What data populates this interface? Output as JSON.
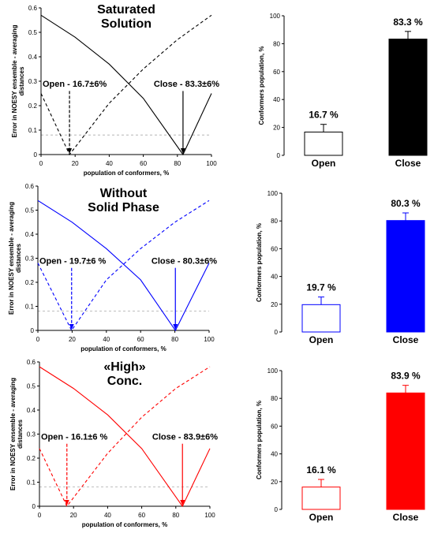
{
  "chart_data": [
    {
      "type": "line",
      "title": [
        "Saturated",
        "Solution"
      ],
      "xlabel": "population of conformers, %",
      "ylabel": [
        "Error in NOESY ensemble - averaging",
        "distances"
      ],
      "xlim": [
        0,
        100
      ],
      "ylim": [
        0,
        0.6
      ],
      "xticks": [
        "0",
        "20",
        "40",
        "60",
        "80",
        "100"
      ],
      "yticks": [
        "0",
        "0.1",
        "0.2",
        "0.3",
        "0.4",
        "0.5",
        "0.6"
      ],
      "color": "#000000",
      "threshold": 0.08,
      "series": [
        {
          "style": "solid",
          "x": [
            0,
            20,
            40,
            60,
            83.3,
            100
          ],
          "y": [
            0.57,
            0.48,
            0.37,
            0.23,
            0.0,
            0.25
          ]
        },
        {
          "style": "dashed",
          "x": [
            0,
            16.7,
            40,
            60,
            80,
            100
          ],
          "y": [
            0.25,
            0.0,
            0.21,
            0.35,
            0.47,
            0.57
          ]
        }
      ],
      "annotations": [
        {
          "text": "Open - 16.7±6%",
          "x": 16.7,
          "style": "dashed"
        },
        {
          "text": "Close - 83.3±6%",
          "x": 83.3,
          "style": "solid"
        }
      ]
    },
    {
      "type": "bar",
      "ylabel": "Conformers population, %",
      "ylim": [
        0,
        100
      ],
      "yticks": [
        "0",
        "20",
        "40",
        "60",
        "80",
        "100"
      ],
      "categories": [
        "Open",
        "Close"
      ],
      "values": [
        16.7,
        83.3
      ],
      "errors": [
        5.5,
        5.5
      ],
      "labels": [
        "16.7 %",
        "83.3 %"
      ],
      "fill": [
        "#ffffff",
        "#000000"
      ],
      "stroke": "#000000"
    },
    {
      "type": "line",
      "title": [
        "Without",
        "Solid Phase"
      ],
      "xlabel": "population of conformers, %",
      "ylabel": [
        "Error in NOESY ensemble - averaging",
        "distances"
      ],
      "xlim": [
        0,
        100
      ],
      "ylim": [
        0,
        0.6
      ],
      "xticks": [
        "0",
        "20",
        "40",
        "60",
        "80",
        "100"
      ],
      "yticks": [
        "0",
        "0.1",
        "0.2",
        "0.3",
        "0.4",
        "0.5",
        "0.6"
      ],
      "color": "#0000ff",
      "threshold": 0.08,
      "series": [
        {
          "style": "solid",
          "x": [
            0,
            20,
            40,
            60,
            80.3,
            100
          ],
          "y": [
            0.54,
            0.45,
            0.34,
            0.21,
            0.0,
            0.28
          ]
        },
        {
          "style": "dashed",
          "x": [
            0,
            19.7,
            40,
            60,
            80,
            100
          ],
          "y": [
            0.28,
            0.0,
            0.21,
            0.34,
            0.45,
            0.54
          ]
        }
      ],
      "annotations": [
        {
          "text": "Open - 19.7±6 %",
          "x": 19.7,
          "style": "dashed"
        },
        {
          "text": "Close - 80.3±6%",
          "x": 80.3,
          "style": "solid"
        }
      ]
    },
    {
      "type": "bar",
      "ylabel": "Conformers population, %",
      "ylim": [
        0,
        100
      ],
      "yticks": [
        "0",
        "20",
        "40",
        "60",
        "80",
        "100"
      ],
      "categories": [
        "Open",
        "Close"
      ],
      "values": [
        19.7,
        80.3
      ],
      "errors": [
        5.5,
        5.5
      ],
      "labels": [
        "19.7 %",
        "80.3 %"
      ],
      "fill": [
        "#ffffff",
        "#0000ff"
      ],
      "stroke": "#0000ff"
    },
    {
      "type": "line",
      "title": [
        "«High»",
        "Conc."
      ],
      "xlabel": "population of conformers, %",
      "ylabel": [
        "Error in NOESY ensemble - averaging",
        "distances"
      ],
      "xlim": [
        0,
        100
      ],
      "ylim": [
        0,
        0.6
      ],
      "xticks": [
        "0",
        "20",
        "40",
        "60",
        "80",
        "100"
      ],
      "yticks": [
        "0",
        "0.1",
        "0.2",
        "0.3",
        "0.4",
        "0.5",
        "0.6"
      ],
      "color": "#ff0000",
      "threshold": 0.08,
      "series": [
        {
          "style": "solid",
          "x": [
            0,
            20,
            40,
            60,
            83.9,
            100
          ],
          "y": [
            0.58,
            0.49,
            0.38,
            0.24,
            0.0,
            0.24
          ]
        },
        {
          "style": "dashed",
          "x": [
            0,
            16.1,
            40,
            60,
            80,
            100
          ],
          "y": [
            0.24,
            0.0,
            0.22,
            0.37,
            0.49,
            0.58
          ]
        }
      ],
      "annotations": [
        {
          "text": "Open - 16.1±6 %",
          "x": 16.1,
          "style": "dashed"
        },
        {
          "text": "Close - 83.9±6%",
          "x": 83.9,
          "style": "solid"
        }
      ]
    },
    {
      "type": "bar",
      "ylabel": "Conformers population, %",
      "ylim": [
        0,
        100
      ],
      "yticks": [
        "0",
        "20",
        "40",
        "60",
        "80",
        "100"
      ],
      "categories": [
        "Open",
        "Close"
      ],
      "values": [
        16.1,
        83.9
      ],
      "errors": [
        5.5,
        5.5
      ],
      "labels": [
        "16.1 %",
        "83.9 %"
      ],
      "fill": [
        "#ffffff",
        "#ff0000"
      ],
      "stroke": "#ff0000"
    }
  ]
}
